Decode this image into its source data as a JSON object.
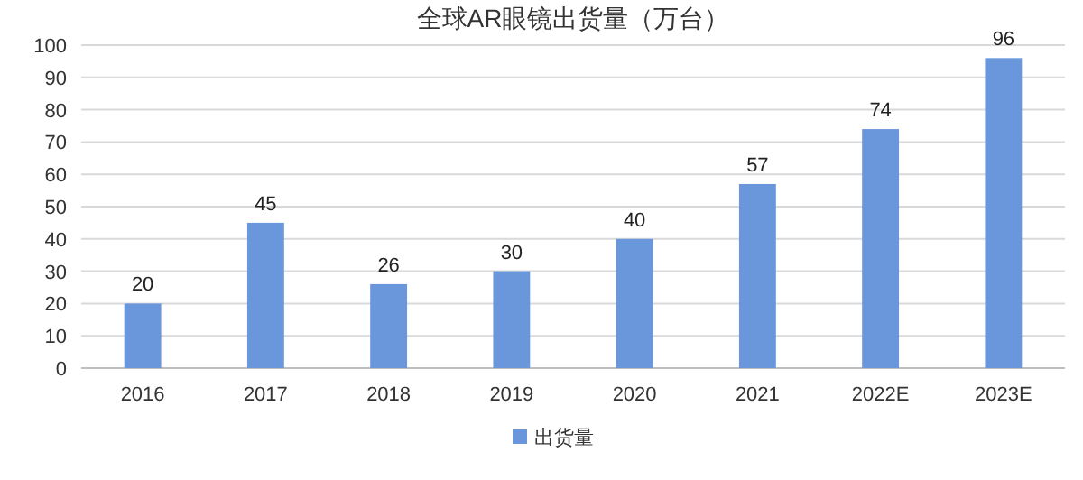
{
  "chart_data": {
    "type": "bar",
    "title": "全球AR眼镜出货量（万台）",
    "categories": [
      "2016",
      "2017",
      "2018",
      "2019",
      "2020",
      "2021",
      "2022E",
      "2023E"
    ],
    "series": [
      {
        "name": "出货量",
        "color": "#6a96dc",
        "values": [
          20,
          45,
          26,
          30,
          40,
          57,
          74,
          96
        ]
      }
    ],
    "ylim": [
      0,
      100
    ],
    "yticks": [
      0,
      10,
      20,
      30,
      40,
      50,
      60,
      70,
      80,
      90,
      100
    ],
    "grid": "y",
    "data_labels": true,
    "legend": "bottom"
  }
}
